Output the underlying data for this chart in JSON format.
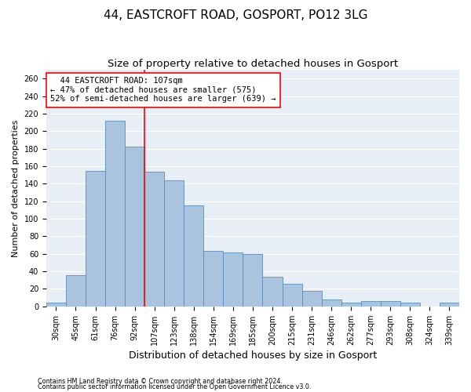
{
  "title1": "44, EASTCROFT ROAD, GOSPORT, PO12 3LG",
  "title2": "Size of property relative to detached houses in Gosport",
  "xlabel": "Distribution of detached houses by size in Gosport",
  "ylabel": "Number of detached properties",
  "footnote1": "Contains HM Land Registry data © Crown copyright and database right 2024.",
  "footnote2": "Contains public sector information licensed under the Open Government Licence v3.0.",
  "categories": [
    "30sqm",
    "45sqm",
    "61sqm",
    "76sqm",
    "92sqm",
    "107sqm",
    "123sqm",
    "138sqm",
    "154sqm",
    "169sqm",
    "185sqm",
    "200sqm",
    "215sqm",
    "231sqm",
    "246sqm",
    "262sqm",
    "277sqm",
    "293sqm",
    "308sqm",
    "324sqm",
    "339sqm"
  ],
  "values": [
    4,
    36,
    155,
    212,
    182,
    154,
    144,
    115,
    63,
    62,
    60,
    34,
    26,
    18,
    8,
    4,
    6,
    6,
    4,
    0,
    4
  ],
  "bar_color": "#aac4e0",
  "bar_edge_color": "#5b8db8",
  "vline_color": "red",
  "vline_index": 5,
  "annotation_line1": "  44 EASTCROFT ROAD: 107sqm",
  "annotation_line2": "← 47% of detached houses are smaller (575)",
  "annotation_line3": "52% of semi-detached houses are larger (639) →",
  "annotation_box_color": "white",
  "annotation_box_edge": "red",
  "ylim": [
    0,
    270
  ],
  "yticks": [
    0,
    20,
    40,
    60,
    80,
    100,
    120,
    140,
    160,
    180,
    200,
    220,
    240,
    260
  ],
  "background_color": "#e8eef5",
  "grid_color": "white",
  "title1_fontsize": 11,
  "title2_fontsize": 9.5,
  "xlabel_fontsize": 9,
  "ylabel_fontsize": 8,
  "tick_fontsize": 7,
  "annotation_fontsize": 7.5
}
